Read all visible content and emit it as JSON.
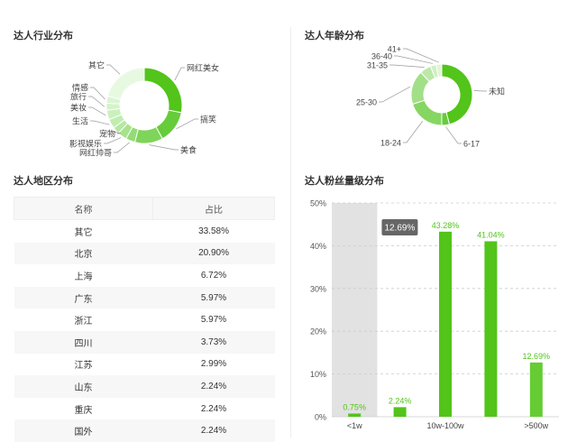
{
  "colors": {
    "green_main": "#52c41a",
    "green_light": "#66cc33",
    "grid_highlight": "#e2e2e2",
    "tooltip_bg": "#666666"
  },
  "industry": {
    "title": "达人行业分布",
    "slices": [
      {
        "name": "网红美女",
        "value": 28,
        "color": "#52c41a"
      },
      {
        "name": "搞笑",
        "value": 14,
        "color": "#66cc3a"
      },
      {
        "name": "美食",
        "value": 12,
        "color": "#7fd45a"
      },
      {
        "name": "网红帅哥",
        "value": 4,
        "color": "#94dc76"
      },
      {
        "name": "影视娱乐",
        "value": 4,
        "color": "#a6e38c"
      },
      {
        "name": "宠物",
        "value": 3,
        "color": "#b4e9a0"
      },
      {
        "name": "生活",
        "value": 4,
        "color": "#c0edb0"
      },
      {
        "name": "美妆",
        "value": 4,
        "color": "#caf0bd"
      },
      {
        "name": "旅行",
        "value": 3,
        "color": "#d3f3c9"
      },
      {
        "name": "情感",
        "value": 3,
        "color": "#dbf5d3"
      },
      {
        "name": "其它",
        "value": 21,
        "color": "#e8f9e2"
      }
    ]
  },
  "age": {
    "title": "达人年龄分布",
    "slices": [
      {
        "name": "未知",
        "value": 46,
        "color": "#52c41a"
      },
      {
        "name": "6-17",
        "value": 4,
        "color": "#66cc3a"
      },
      {
        "name": "18-24",
        "value": 20,
        "color": "#86d662"
      },
      {
        "name": "25-30",
        "value": 18,
        "color": "#a2e088"
      },
      {
        "name": "31-35",
        "value": 6,
        "color": "#bce8a8"
      },
      {
        "name": "36-40",
        "value": 3,
        "color": "#cfefc1"
      },
      {
        "name": "41+",
        "value": 3,
        "color": "#e0f6d6"
      }
    ]
  },
  "region": {
    "title": "达人地区分布",
    "header": {
      "name": "名称",
      "pct": "占比"
    },
    "rows": [
      {
        "name": "其它",
        "pct": "33.58%"
      },
      {
        "name": "北京",
        "pct": "20.90%"
      },
      {
        "name": "上海",
        "pct": "6.72%"
      },
      {
        "name": "广东",
        "pct": "5.97%"
      },
      {
        "name": "浙江",
        "pct": "5.97%"
      },
      {
        "name": "四川",
        "pct": "3.73%"
      },
      {
        "name": "江苏",
        "pct": "2.99%"
      },
      {
        "name": "山东",
        "pct": "2.24%"
      },
      {
        "name": "重庆",
        "pct": "2.24%"
      },
      {
        "name": "国外",
        "pct": "2.24%"
      }
    ]
  },
  "fans": {
    "title": "达人粉丝量级分布",
    "tooltip": "12.69%"
  },
  "chart_data": {
    "type": "bar",
    "categories": [
      "<1w",
      "1w-10w",
      "10w-100w",
      "100w-500w",
      ">500w"
    ],
    "values": [
      0.75,
      2.24,
      43.28,
      41.04,
      12.69
    ],
    "data_labels": [
      "0.75%",
      "2.24%",
      "43.28%",
      "41.04%",
      "12.69%"
    ],
    "shown_tick_labels": [
      "<1w",
      "",
      "10w-100w",
      "",
      ">500w"
    ],
    "yticks": [
      "0%",
      "10%",
      "20%",
      "30%",
      "40%",
      "50%"
    ],
    "ylim": [
      0,
      50
    ],
    "highlighted_index": 0,
    "grid": true
  }
}
